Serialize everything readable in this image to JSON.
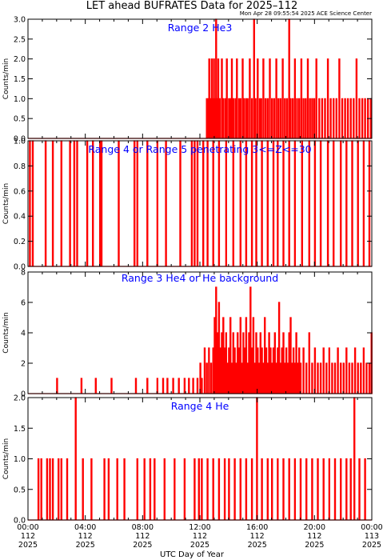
{
  "title": "LET ahead BUFRATES Data for 2025–112",
  "timestamp": "Mon Apr 28 09:55:54 2025 ACE Science Center",
  "xlabel": "UTC Day of Year",
  "ylabel": "Counts/min",
  "colors": {
    "series": "#ff0000",
    "panel_label": "#0000ff",
    "axes": "#000000"
  },
  "x_ticks": [
    {
      "hours": 0,
      "time": "00:00",
      "day": "112",
      "year": "2025"
    },
    {
      "hours": 4,
      "time": "04:00",
      "day": "112",
      "year": "2025"
    },
    {
      "hours": 8,
      "time": "08:00",
      "day": "112",
      "year": "2025"
    },
    {
      "hours": 12,
      "time": "12:00",
      "day": "112",
      "year": "2025"
    },
    {
      "hours": 16,
      "time": "16:00",
      "day": "112",
      "year": "2025"
    },
    {
      "hours": 20,
      "time": "20:00",
      "day": "112",
      "year": "2025"
    },
    {
      "hours": 24,
      "time": "00:00",
      "day": "113",
      "year": "2025"
    }
  ],
  "chart_data": [
    {
      "type": "line",
      "label": "Range 2 He3",
      "xlim": [
        0,
        24
      ],
      "ylim": [
        0,
        3.0
      ],
      "yticks": [
        "0.0",
        "0.5",
        "1.0",
        "1.5",
        "2.0",
        "2.5",
        "3.0"
      ],
      "ytick_values": [
        0,
        0.5,
        1,
        1.5,
        2,
        2.5,
        3
      ],
      "spikes": [
        [
          12.45,
          1
        ],
        [
          12.55,
          1
        ],
        [
          12.62,
          2
        ],
        [
          12.7,
          1
        ],
        [
          12.8,
          2
        ],
        [
          12.9,
          1
        ],
        [
          12.95,
          2
        ],
        [
          13.0,
          1
        ],
        [
          13.1,
          3
        ],
        [
          13.2,
          1
        ],
        [
          13.25,
          2
        ],
        [
          13.35,
          1
        ],
        [
          13.5,
          2
        ],
        [
          13.6,
          1
        ],
        [
          13.75,
          1
        ],
        [
          13.85,
          2
        ],
        [
          14.0,
          1
        ],
        [
          14.1,
          1
        ],
        [
          14.2,
          2
        ],
        [
          14.3,
          1
        ],
        [
          14.45,
          1
        ],
        [
          14.55,
          2
        ],
        [
          14.7,
          1
        ],
        [
          14.8,
          1
        ],
        [
          14.95,
          2
        ],
        [
          15.05,
          1
        ],
        [
          15.2,
          1
        ],
        [
          15.3,
          1
        ],
        [
          15.45,
          2
        ],
        [
          15.6,
          1
        ],
        [
          15.75,
          3
        ],
        [
          15.85,
          1
        ],
        [
          16.0,
          2
        ],
        [
          16.15,
          1
        ],
        [
          16.25,
          1
        ],
        [
          16.4,
          2
        ],
        [
          16.55,
          1
        ],
        [
          16.7,
          1
        ],
        [
          16.85,
          2
        ],
        [
          17.0,
          1
        ],
        [
          17.15,
          1
        ],
        [
          17.3,
          2
        ],
        [
          17.45,
          1
        ],
        [
          17.6,
          1
        ],
        [
          17.75,
          2
        ],
        [
          17.9,
          1
        ],
        [
          18.05,
          1
        ],
        [
          18.2,
          3
        ],
        [
          18.3,
          1
        ],
        [
          18.45,
          1
        ],
        [
          18.6,
          2
        ],
        [
          18.75,
          1
        ],
        [
          18.9,
          1
        ],
        [
          19.05,
          2
        ],
        [
          19.2,
          1
        ],
        [
          19.35,
          1
        ],
        [
          19.5,
          2
        ],
        [
          19.65,
          1
        ],
        [
          19.8,
          1
        ],
        [
          19.95,
          1
        ],
        [
          20.1,
          2
        ],
        [
          20.3,
          1
        ],
        [
          20.5,
          1
        ],
        [
          20.7,
          1
        ],
        [
          20.9,
          2
        ],
        [
          21.1,
          1
        ],
        [
          21.3,
          1
        ],
        [
          21.5,
          1
        ],
        [
          21.7,
          2
        ],
        [
          21.9,
          1
        ],
        [
          22.1,
          1
        ],
        [
          22.3,
          1
        ],
        [
          22.5,
          1
        ],
        [
          22.7,
          1
        ],
        [
          22.9,
          2
        ],
        [
          23.1,
          1
        ],
        [
          23.3,
          1
        ],
        [
          23.5,
          1
        ],
        [
          23.7,
          1
        ],
        [
          23.9,
          1
        ]
      ]
    },
    {
      "type": "line",
      "label": "Range 4 or Range 5 penetrating 3<=Z<=30",
      "xlim": [
        0,
        24
      ],
      "ylim": [
        0,
        1.0
      ],
      "yticks": [
        "0.0",
        "0.2",
        "0.4",
        "0.6",
        "0.8",
        "1.0"
      ],
      "ytick_values": [
        0,
        0.2,
        0.4,
        0.6,
        0.8,
        1.0
      ],
      "spikes": [
        [
          0.1,
          1
        ],
        [
          0.3,
          1
        ],
        [
          1.2,
          1
        ],
        [
          1.7,
          1
        ],
        [
          2.3,
          1
        ],
        [
          2.9,
          1
        ],
        [
          3.2,
          1
        ],
        [
          3.4,
          1
        ],
        [
          4.1,
          1
        ],
        [
          4.5,
          1
        ],
        [
          5.0,
          1
        ],
        [
          5.1,
          1
        ],
        [
          6.3,
          1
        ],
        [
          7.4,
          1
        ],
        [
          7.6,
          1
        ],
        [
          8.3,
          1
        ],
        [
          9.0,
          1
        ],
        [
          9.6,
          1
        ],
        [
          10.6,
          1
        ],
        [
          11.4,
          1
        ],
        [
          11.6,
          1
        ],
        [
          11.8,
          1
        ],
        [
          12.2,
          1
        ],
        [
          12.5,
          1
        ],
        [
          12.9,
          1
        ],
        [
          13.3,
          1
        ],
        [
          13.8,
          1
        ],
        [
          14.3,
          1
        ],
        [
          14.8,
          1
        ],
        [
          15.2,
          1
        ],
        [
          15.6,
          1
        ],
        [
          15.9,
          1
        ],
        [
          16.3,
          1
        ],
        [
          16.7,
          1
        ],
        [
          17.1,
          1
        ],
        [
          17.4,
          1
        ],
        [
          17.8,
          1
        ],
        [
          18.2,
          1
        ],
        [
          18.6,
          1
        ],
        [
          19.1,
          1
        ],
        [
          19.6,
          1
        ],
        [
          20.0,
          1
        ],
        [
          20.4,
          1
        ],
        [
          20.9,
          1
        ],
        [
          21.3,
          1
        ],
        [
          21.8,
          1
        ],
        [
          22.2,
          1
        ],
        [
          22.6,
          1
        ],
        [
          23.0,
          1
        ],
        [
          23.4,
          1
        ],
        [
          23.8,
          1
        ]
      ]
    },
    {
      "type": "line",
      "label": "Range 3 He4 or He background",
      "xlim": [
        0,
        24
      ],
      "ylim": [
        0,
        8
      ],
      "yticks": [
        "0",
        "2",
        "4",
        "6",
        "8"
      ],
      "ytick_values": [
        0,
        2,
        4,
        6,
        8
      ],
      "spikes": [
        [
          2.0,
          1
        ],
        [
          3.7,
          1
        ],
        [
          4.7,
          1
        ],
        [
          5.8,
          1
        ],
        [
          7.5,
          1
        ],
        [
          8.3,
          1
        ],
        [
          9.0,
          1
        ],
        [
          9.4,
          1
        ],
        [
          9.7,
          1
        ],
        [
          10.1,
          1
        ],
        [
          10.5,
          1
        ],
        [
          10.9,
          1
        ],
        [
          11.2,
          1
        ],
        [
          11.5,
          1
        ],
        [
          11.8,
          1
        ],
        [
          12.0,
          2
        ],
        [
          12.1,
          1
        ],
        [
          12.3,
          3
        ],
        [
          12.45,
          2
        ],
        [
          12.6,
          3
        ],
        [
          12.75,
          2
        ],
        [
          12.9,
          3
        ],
        [
          13.0,
          5
        ],
        [
          13.1,
          7
        ],
        [
          13.2,
          4
        ],
        [
          13.3,
          6
        ],
        [
          13.4,
          3
        ],
        [
          13.5,
          4
        ],
        [
          13.6,
          5
        ],
        [
          13.7,
          3
        ],
        [
          13.8,
          4
        ],
        [
          13.9,
          2
        ],
        [
          14.0,
          3
        ],
        [
          14.1,
          5
        ],
        [
          14.2,
          2
        ],
        [
          14.3,
          4
        ],
        [
          14.4,
          3
        ],
        [
          14.5,
          2
        ],
        [
          14.6,
          4
        ],
        [
          14.7,
          3
        ],
        [
          14.8,
          5
        ],
        [
          14.9,
          2
        ],
        [
          15.0,
          4
        ],
        [
          15.1,
          3
        ],
        [
          15.2,
          5
        ],
        [
          15.3,
          2
        ],
        [
          15.4,
          4
        ],
        [
          15.5,
          7
        ],
        [
          15.6,
          3
        ],
        [
          15.7,
          5
        ],
        [
          15.8,
          2
        ],
        [
          15.9,
          4
        ],
        [
          16.0,
          3
        ],
        [
          16.1,
          2
        ],
        [
          16.2,
          4
        ],
        [
          16.3,
          3
        ],
        [
          16.4,
          2
        ],
        [
          16.5,
          5
        ],
        [
          16.6,
          3
        ],
        [
          16.7,
          2
        ],
        [
          16.8,
          4
        ],
        [
          16.9,
          3
        ],
        [
          17.0,
          2
        ],
        [
          17.1,
          3
        ],
        [
          17.2,
          4
        ],
        [
          17.3,
          2
        ],
        [
          17.4,
          3
        ],
        [
          17.5,
          6
        ],
        [
          17.6,
          2
        ],
        [
          17.7,
          3
        ],
        [
          17.8,
          4
        ],
        [
          17.9,
          2
        ],
        [
          18.0,
          3
        ],
        [
          18.1,
          2
        ],
        [
          18.2,
          4
        ],
        [
          18.3,
          5
        ],
        [
          18.4,
          2
        ],
        [
          18.5,
          3
        ],
        [
          18.6,
          2
        ],
        [
          18.7,
          4
        ],
        [
          18.8,
          2
        ],
        [
          18.9,
          3
        ],
        [
          19.0,
          2
        ],
        [
          19.2,
          3
        ],
        [
          19.4,
          2
        ],
        [
          19.6,
          4
        ],
        [
          19.8,
          2
        ],
        [
          20.0,
          3
        ],
        [
          20.2,
          2
        ],
        [
          20.4,
          2
        ],
        [
          20.6,
          3
        ],
        [
          20.8,
          2
        ],
        [
          21.0,
          3
        ],
        [
          21.2,
          2
        ],
        [
          21.4,
          2
        ],
        [
          21.6,
          3
        ],
        [
          21.8,
          2
        ],
        [
          22.0,
          2
        ],
        [
          22.2,
          3
        ],
        [
          22.4,
          2
        ],
        [
          22.6,
          2
        ],
        [
          22.8,
          3
        ],
        [
          23.0,
          2
        ],
        [
          23.2,
          2
        ],
        [
          23.4,
          3
        ],
        [
          23.6,
          2
        ],
        [
          23.8,
          2
        ],
        [
          23.95,
          4
        ]
      ]
    },
    {
      "type": "line",
      "label": "Range 4 He",
      "xlim": [
        0,
        24
      ],
      "ylim": [
        0,
        2.0
      ],
      "yticks": [
        "0.0",
        "0.5",
        "1.0",
        "1.5",
        "2.0"
      ],
      "ytick_values": [
        0,
        0.5,
        1.0,
        1.5,
        2.0
      ],
      "spikes": [
        [
          0.7,
          1
        ],
        [
          0.9,
          1
        ],
        [
          1.3,
          1
        ],
        [
          1.5,
          1
        ],
        [
          1.7,
          1
        ],
        [
          2.1,
          1
        ],
        [
          2.3,
          1
        ],
        [
          2.7,
          1
        ],
        [
          3.3,
          2
        ],
        [
          3.8,
          1
        ],
        [
          4.4,
          1
        ],
        [
          5.3,
          1
        ],
        [
          5.6,
          1
        ],
        [
          6.2,
          1
        ],
        [
          6.7,
          1
        ],
        [
          7.6,
          1
        ],
        [
          8.1,
          1
        ],
        [
          8.5,
          1
        ],
        [
          8.8,
          1
        ],
        [
          9.5,
          1
        ],
        [
          10.2,
          1
        ],
        [
          10.9,
          1
        ],
        [
          11.6,
          1
        ],
        [
          11.9,
          1
        ],
        [
          12.1,
          1
        ],
        [
          12.5,
          1
        ],
        [
          12.9,
          1
        ],
        [
          13.3,
          1
        ],
        [
          13.7,
          1
        ],
        [
          14.0,
          1
        ],
        [
          14.4,
          1
        ],
        [
          14.8,
          1
        ],
        [
          15.2,
          1
        ],
        [
          15.6,
          1
        ],
        [
          15.95,
          2
        ],
        [
          16.3,
          1
        ],
        [
          16.7,
          1
        ],
        [
          17.0,
          1
        ],
        [
          17.4,
          1
        ],
        [
          17.8,
          1
        ],
        [
          18.2,
          1
        ],
        [
          18.6,
          1
        ],
        [
          19.0,
          1
        ],
        [
          19.4,
          1
        ],
        [
          19.8,
          1
        ],
        [
          20.2,
          1
        ],
        [
          20.6,
          1
        ],
        [
          21.0,
          1
        ],
        [
          21.4,
          1
        ],
        [
          21.8,
          1
        ],
        [
          22.2,
          1
        ],
        [
          22.5,
          1
        ],
        [
          22.75,
          2
        ],
        [
          23.1,
          1
        ],
        [
          23.5,
          1
        ]
      ]
    }
  ]
}
